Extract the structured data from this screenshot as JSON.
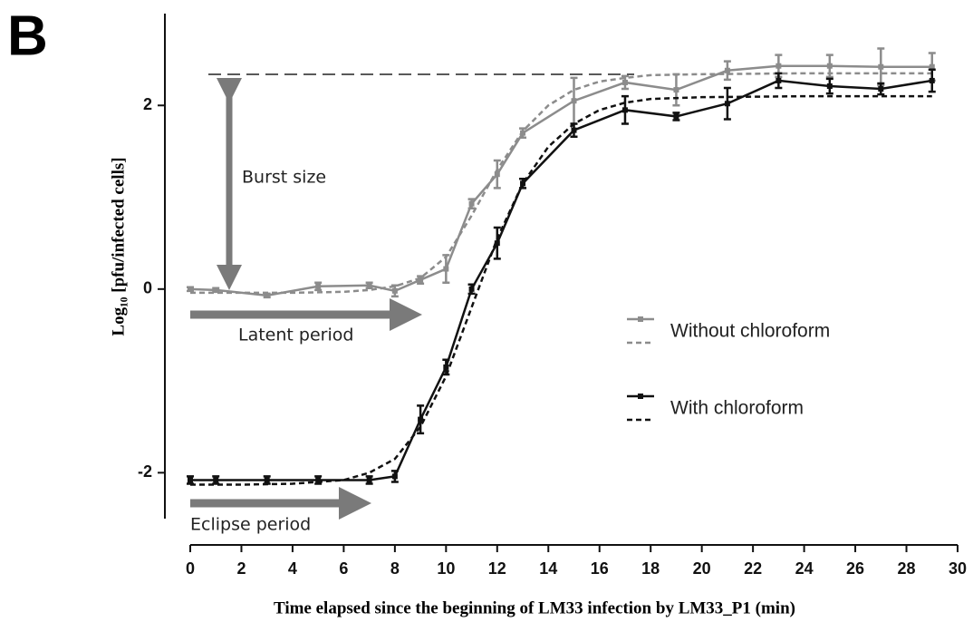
{
  "panel_label": "B",
  "chart_data": {
    "type": "line",
    "xlabel": "Time elapsed since the beginning of LM33 infection by LM33_P1 (min)",
    "ylabel": "Log₁₀ [pfu/infected cells]",
    "x": [
      0,
      1,
      3,
      5,
      7,
      8,
      9,
      10,
      11,
      12,
      13,
      15,
      17,
      19,
      21,
      23,
      25,
      27,
      29
    ],
    "series": [
      {
        "name": "Without chloroform",
        "color": "#8c8c8c",
        "values": [
          0.0,
          -0.01,
          -0.07,
          0.03,
          0.04,
          -0.02,
          0.1,
          0.22,
          0.93,
          1.25,
          1.7,
          2.05,
          2.25,
          2.17,
          2.38,
          2.43,
          2.43,
          2.42,
          2.42
        ],
        "errors": [
          0.02,
          0.02,
          0.02,
          0.04,
          0.03,
          0.06,
          0.04,
          0.15,
          0.05,
          0.15,
          0.05,
          0.25,
          0.07,
          0.17,
          0.1,
          0.12,
          0.12,
          0.2,
          0.15
        ],
        "fit": {
          "x": [
            0,
            2,
            4,
            6,
            7,
            8,
            9,
            10,
            11,
            12,
            13,
            14,
            15,
            16,
            17,
            18,
            20,
            24,
            29
          ],
          "values": [
            -0.04,
            -0.04,
            -0.04,
            -0.03,
            -0.01,
            0.03,
            0.12,
            0.35,
            0.8,
            1.3,
            1.72,
            2.0,
            2.17,
            2.26,
            2.3,
            2.33,
            2.34,
            2.35,
            2.35
          ]
        }
      },
      {
        "name": "With chloroform",
        "color": "#111111",
        "values": [
          -2.08,
          -2.08,
          -2.08,
          -2.08,
          -2.08,
          -2.04,
          -1.42,
          -0.85,
          0.0,
          0.5,
          1.15,
          1.73,
          1.95,
          1.88,
          2.02,
          2.27,
          2.21,
          2.18,
          2.27
        ],
        "errors": [
          0.04,
          0.04,
          0.04,
          0.04,
          0.04,
          0.06,
          0.15,
          0.08,
          0.05,
          0.17,
          0.05,
          0.07,
          0.15,
          0.04,
          0.17,
          0.08,
          0.08,
          0.06,
          0.12
        ],
        "fit": {
          "x": [
            0,
            2,
            4,
            6,
            7,
            8,
            9,
            10,
            11,
            12,
            13,
            14,
            15,
            16,
            17,
            18,
            20,
            24,
            29
          ],
          "values": [
            -2.13,
            -2.13,
            -2.12,
            -2.08,
            -2.0,
            -1.85,
            -1.5,
            -0.95,
            -0.2,
            0.55,
            1.15,
            1.55,
            1.8,
            1.95,
            2.03,
            2.07,
            2.09,
            2.1,
            2.1
          ]
        }
      }
    ],
    "xlim": [
      0,
      30
    ],
    "xticks": [
      0,
      2,
      4,
      6,
      8,
      10,
      12,
      14,
      16,
      18,
      20,
      22,
      24,
      26,
      28,
      30
    ],
    "ylim": [
      -2.5,
      3.0
    ],
    "yticks": [
      -2,
      0,
      2
    ],
    "annotations": [
      "Burst size",
      "Latent period",
      "Eclipse period"
    ]
  }
}
